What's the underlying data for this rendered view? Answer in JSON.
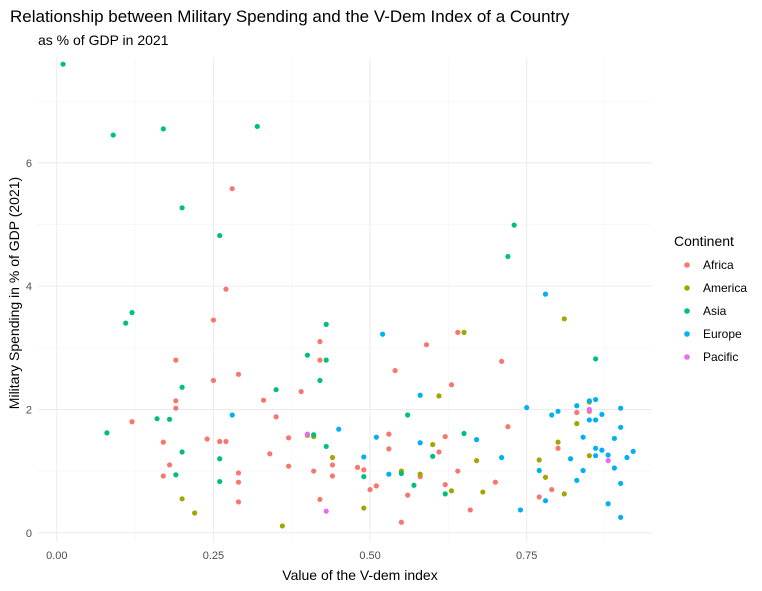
{
  "chart_data": {
    "type": "scatter",
    "title": "Relationship between Military Spending and the V-Dem Index of a Country",
    "subtitle": "as % of GDP in 2021",
    "xlabel": "Value of the V-dem index",
    "ylabel": "Military Spending in % of GDP (2021)",
    "xlim": [
      -0.03,
      0.95
    ],
    "ylim": [
      -0.15,
      7.7
    ],
    "x_ticks": [
      0,
      0.25,
      0.5,
      0.75
    ],
    "x_tick_labels": [
      "0.00",
      "0.25",
      "0.50",
      "0.75"
    ],
    "y_ticks": [
      0,
      2,
      4,
      6
    ],
    "y_tick_labels": [
      "0",
      "2",
      "4",
      "6"
    ],
    "grid": true,
    "legend": {
      "title": "Continent",
      "position": "right"
    },
    "colors": {
      "Africa": "#F8766D",
      "America": "#A3A500",
      "Asia": "#00BF7D",
      "Europe": "#00B0F6",
      "Pacific": "#E76BF3"
    },
    "series": [
      {
        "name": "Africa",
        "points": [
          [
            0.12,
            1.8
          ],
          [
            0.17,
            1.47
          ],
          [
            0.18,
            1.1
          ],
          [
            0.17,
            0.92
          ],
          [
            0.19,
            2.02
          ],
          [
            0.19,
            2.14
          ],
          [
            0.19,
            2.8
          ],
          [
            0.24,
            1.52
          ],
          [
            0.25,
            2.47
          ],
          [
            0.25,
            3.45
          ],
          [
            0.27,
            1.48
          ],
          [
            0.26,
            1.48
          ],
          [
            0.27,
            3.95
          ],
          [
            0.28,
            5.58
          ],
          [
            0.29,
            2.57
          ],
          [
            0.29,
            0.97
          ],
          [
            0.29,
            0.82
          ],
          [
            0.29,
            0.5
          ],
          [
            0.33,
            2.15
          ],
          [
            0.34,
            1.28
          ],
          [
            0.35,
            1.88
          ],
          [
            0.37,
            1.08
          ],
          [
            0.37,
            1.54
          ],
          [
            0.39,
            2.29
          ],
          [
            0.41,
            1.0
          ],
          [
            0.42,
            0.54
          ],
          [
            0.42,
            3.1
          ],
          [
            0.42,
            2.8
          ],
          [
            0.44,
            1.1
          ],
          [
            0.44,
            0.92
          ],
          [
            0.48,
            1.06
          ],
          [
            0.49,
            1.02
          ],
          [
            0.5,
            0.7
          ],
          [
            0.51,
            0.76
          ],
          [
            0.53,
            1.36
          ],
          [
            0.53,
            1.6
          ],
          [
            0.54,
            2.63
          ],
          [
            0.55,
            0.17
          ],
          [
            0.56,
            0.61
          ],
          [
            0.58,
            0.91
          ],
          [
            0.59,
            3.05
          ],
          [
            0.61,
            1.31
          ],
          [
            0.62,
            0.78
          ],
          [
            0.62,
            1.56
          ],
          [
            0.63,
            2.4
          ],
          [
            0.64,
            3.25
          ],
          [
            0.64,
            1.0
          ],
          [
            0.66,
            0.37
          ],
          [
            0.7,
            0.82
          ],
          [
            0.71,
            2.78
          ],
          [
            0.72,
            1.72
          ],
          [
            0.77,
            0.58
          ],
          [
            0.79,
            0.7
          ],
          [
            0.8,
            1.37
          ],
          [
            0.83,
            1.95
          ],
          [
            0.85,
            1.97
          ]
        ]
      },
      {
        "name": "America",
        "points": [
          [
            0.2,
            0.55
          ],
          [
            0.22,
            0.32
          ],
          [
            0.36,
            0.11
          ],
          [
            0.4,
            1.58
          ],
          [
            0.41,
            1.56
          ],
          [
            0.44,
            1.22
          ],
          [
            0.49,
            0.4
          ],
          [
            0.55,
            1.0
          ],
          [
            0.58,
            0.95
          ],
          [
            0.6,
            1.43
          ],
          [
            0.61,
            2.22
          ],
          [
            0.63,
            0.68
          ],
          [
            0.65,
            3.25
          ],
          [
            0.67,
            1.17
          ],
          [
            0.68,
            0.66
          ],
          [
            0.77,
            1.18
          ],
          [
            0.78,
            0.9
          ],
          [
            0.8,
            1.47
          ],
          [
            0.81,
            0.63
          ],
          [
            0.81,
            3.47
          ],
          [
            0.83,
            1.77
          ],
          [
            0.85,
            1.25
          ],
          [
            0.85,
            2.12
          ]
        ]
      },
      {
        "name": "Asia",
        "points": [
          [
            0.01,
            7.6
          ],
          [
            0.08,
            1.62
          ],
          [
            0.09,
            6.45
          ],
          [
            0.11,
            3.4
          ],
          [
            0.12,
            3.57
          ],
          [
            0.16,
            1.85
          ],
          [
            0.17,
            6.55
          ],
          [
            0.18,
            1.84
          ],
          [
            0.19,
            0.94
          ],
          [
            0.2,
            5.27
          ],
          [
            0.2,
            2.36
          ],
          [
            0.2,
            1.31
          ],
          [
            0.26,
            4.82
          ],
          [
            0.26,
            0.83
          ],
          [
            0.26,
            1.2
          ],
          [
            0.32,
            6.59
          ],
          [
            0.35,
            2.32
          ],
          [
            0.4,
            2.88
          ],
          [
            0.41,
            1.59
          ],
          [
            0.42,
            2.47
          ],
          [
            0.43,
            2.8
          ],
          [
            0.43,
            3.38
          ],
          [
            0.43,
            1.4
          ],
          [
            0.49,
            0.91
          ],
          [
            0.55,
            0.96
          ],
          [
            0.56,
            1.91
          ],
          [
            0.57,
            0.77
          ],
          [
            0.6,
            1.24
          ],
          [
            0.62,
            0.63
          ],
          [
            0.65,
            1.61
          ],
          [
            0.72,
            4.48
          ],
          [
            0.73,
            4.99
          ],
          [
            0.86,
            2.82
          ]
        ]
      },
      {
        "name": "Europe",
        "points": [
          [
            0.28,
            1.91
          ],
          [
            0.45,
            1.68
          ],
          [
            0.49,
            1.23
          ],
          [
            0.51,
            1.55
          ],
          [
            0.52,
            3.22
          ],
          [
            0.53,
            0.95
          ],
          [
            0.58,
            1.46
          ],
          [
            0.58,
            2.23
          ],
          [
            0.67,
            1.51
          ],
          [
            0.71,
            1.22
          ],
          [
            0.74,
            0.37
          ],
          [
            0.75,
            2.03
          ],
          [
            0.77,
            1.01
          ],
          [
            0.78,
            0.52
          ],
          [
            0.78,
            3.87
          ],
          [
            0.79,
            1.91
          ],
          [
            0.8,
            1.97
          ],
          [
            0.82,
            1.2
          ],
          [
            0.83,
            0.85
          ],
          [
            0.83,
            2.06
          ],
          [
            0.84,
            1.01
          ],
          [
            0.84,
            1.55
          ],
          [
            0.85,
            1.83
          ],
          [
            0.85,
            2.14
          ],
          [
            0.86,
            1.37
          ],
          [
            0.86,
            1.83
          ],
          [
            0.86,
            2.16
          ],
          [
            0.86,
            1.25
          ],
          [
            0.87,
            1.34
          ],
          [
            0.87,
            1.92
          ],
          [
            0.88,
            1.26
          ],
          [
            0.88,
            0.47
          ],
          [
            0.89,
            1.53
          ],
          [
            0.89,
            1.05
          ],
          [
            0.9,
            2.02
          ],
          [
            0.9,
            0.25
          ],
          [
            0.9,
            0.8
          ],
          [
            0.9,
            1.71
          ],
          [
            0.91,
            1.22
          ],
          [
            0.92,
            1.32
          ]
        ]
      },
      {
        "name": "Pacific",
        "points": [
          [
            0.4,
            1.6
          ],
          [
            0.43,
            0.35
          ],
          [
            0.85,
            2.0
          ],
          [
            0.88,
            1.17
          ]
        ]
      }
    ]
  }
}
